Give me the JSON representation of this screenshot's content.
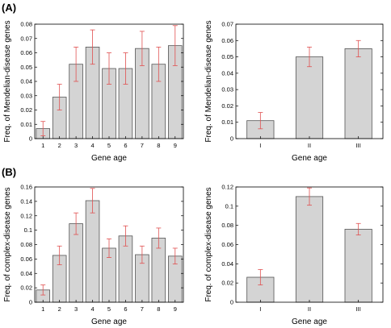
{
  "figure": {
    "panel_labels": [
      "(A)",
      "(B)"
    ]
  },
  "chart_data": [
    {
      "type": "bar",
      "categories": [
        "1",
        "2",
        "3",
        "4",
        "5",
        "6",
        "7",
        "8",
        "9"
      ],
      "values": [
        0.007,
        0.029,
        0.052,
        0.064,
        0.049,
        0.049,
        0.063,
        0.052,
        0.065
      ],
      "errors": [
        0.005,
        0.009,
        0.012,
        0.012,
        0.011,
        0.011,
        0.012,
        0.012,
        0.014
      ],
      "xlabel": "Gene age",
      "ylabel": "Freq. of Mendelian-disease genes",
      "ylim": [
        0,
        0.08
      ],
      "yticks": [
        "0",
        "0.01",
        "0.02",
        "0.03",
        "0.04",
        "0.05",
        "0.06",
        "0.07",
        "0.08"
      ],
      "bar_color": "#d4d4d4",
      "error_color": "#e05050",
      "grid": false
    },
    {
      "type": "bar",
      "categories": [
        "I",
        "II",
        "III"
      ],
      "values": [
        0.011,
        0.05,
        0.055
      ],
      "errors": [
        0.005,
        0.006,
        0.005
      ],
      "xlabel": "Gene age",
      "ylabel": "Freq. of Mendelian-disease genes",
      "ylim": [
        0,
        0.07
      ],
      "yticks": [
        "0",
        "0.01",
        "0.02",
        "0.03",
        "0.04",
        "0.05",
        "0.06",
        "0.07"
      ],
      "bar_color": "#d4d4d4",
      "error_color": "#e05050",
      "grid": false
    },
    {
      "type": "bar",
      "categories": [
        "1",
        "2",
        "3",
        "4",
        "5",
        "6",
        "7",
        "8",
        "9"
      ],
      "values": [
        0.017,
        0.065,
        0.109,
        0.141,
        0.075,
        0.092,
        0.066,
        0.089,
        0.064
      ],
      "errors": [
        0.007,
        0.013,
        0.015,
        0.017,
        0.013,
        0.014,
        0.012,
        0.014,
        0.011
      ],
      "xlabel": "Gene age",
      "ylabel": "Freq. of complex-disease genes",
      "ylim": [
        0,
        0.16
      ],
      "yticks": [
        "0",
        "0.02",
        "0.04",
        "0.06",
        "0.08",
        "0.1",
        "0.12",
        "0.14",
        "0.16"
      ],
      "bar_color": "#d4d4d4",
      "error_color": "#e05050",
      "grid": false
    },
    {
      "type": "bar",
      "categories": [
        "I",
        "II",
        "III"
      ],
      "values": [
        0.026,
        0.11,
        0.076
      ],
      "errors": [
        0.008,
        0.009,
        0.006
      ],
      "xlabel": "Gene age",
      "ylabel": "Freq. of complex-disease genes",
      "ylim": [
        0,
        0.12
      ],
      "yticks": [
        "0",
        "0.02",
        "0.04",
        "0.06",
        "0.08",
        "0.1",
        "0.12"
      ],
      "bar_color": "#d4d4d4",
      "error_color": "#e05050",
      "grid": false
    }
  ]
}
